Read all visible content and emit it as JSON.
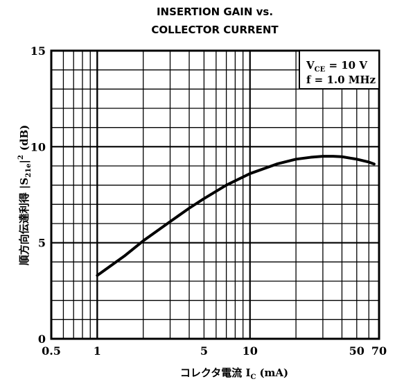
{
  "chart_data": {
    "type": "line",
    "title_line1": "INSERTION GAIN vs.",
    "title_line2": "COLLECTOR CURRENT",
    "xlabel_main": "コレクタ電流  I",
    "xlabel_sub": "C",
    "xlabel_unit": "(mA)",
    "ylabel_main": "順方向伝達利得  |S",
    "ylabel_sub": "21e",
    "ylabel_pipe": "|",
    "ylabel_sup": "2",
    "ylabel_unit": "(dB)",
    "x_scale": "log",
    "xlim": [
      0.5,
      70
    ],
    "ylim": [
      0,
      15
    ],
    "x_ticks": [
      {
        "value": 0.5,
        "label": "0.5"
      },
      {
        "value": 1,
        "label": "1"
      },
      {
        "value": 5,
        "label": "5"
      },
      {
        "value": 10,
        "label": "10"
      },
      {
        "value": 50,
        "label": "50"
      },
      {
        "value": 70,
        "label": "70"
      }
    ],
    "y_ticks": [
      {
        "value": 0,
        "label": "0"
      },
      {
        "value": 5,
        "label": "5"
      },
      {
        "value": 10,
        "label": "10"
      },
      {
        "value": 15,
        "label": "15"
      }
    ],
    "grid": true,
    "legend": {
      "placement": "top-right",
      "line1_main": "V",
      "line1_sub": "CE",
      "line1_rest": " = 10 V",
      "line2": "f = 1.0 MHz"
    },
    "series": [
      {
        "x": [
          1,
          1.5,
          2,
          3,
          4,
          5,
          7,
          10,
          15,
          20,
          25,
          30,
          35,
          40,
          50,
          60,
          65
        ],
        "y": [
          3.3,
          4.3,
          5.1,
          6.1,
          6.8,
          7.3,
          8.0,
          8.6,
          9.1,
          9.35,
          9.45,
          9.5,
          9.5,
          9.48,
          9.35,
          9.2,
          9.1
        ]
      }
    ]
  }
}
